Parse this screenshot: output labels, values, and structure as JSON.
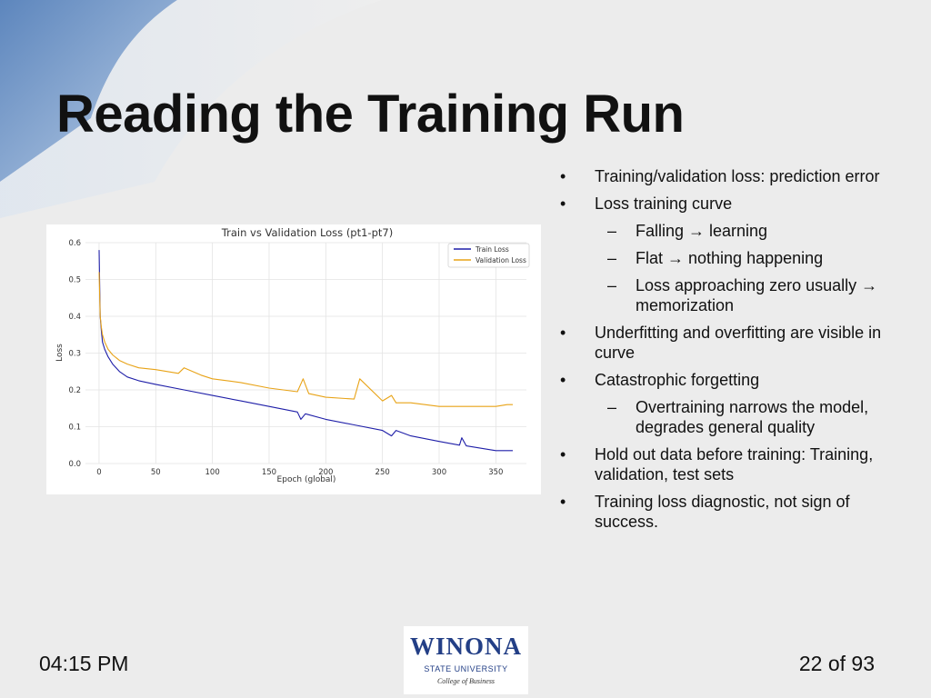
{
  "slide": {
    "title": "Reading the Training Run",
    "time": "04:15 PM",
    "page": "22 of 93"
  },
  "logo": {
    "word": "WINONA",
    "sub": "STATE UNIVERSITY",
    "college": "College of Business"
  },
  "bullets": [
    {
      "level": 1,
      "marker": "•",
      "text": "Training/validation loss: prediction error"
    },
    {
      "level": 1,
      "marker": "•",
      "text": "Loss training curve"
    },
    {
      "level": 2,
      "marker": "–",
      "text": "Falling → learning"
    },
    {
      "level": 2,
      "marker": "–",
      "text": "Flat → nothing happening"
    },
    {
      "level": 2,
      "marker": "–",
      "text": "Loss approaching zero usually → memorization"
    },
    {
      "level": 1,
      "marker": "•",
      "text": "Underfitting and overfitting are visible in curve"
    },
    {
      "level": 1,
      "marker": "•",
      "text": "Catastrophic forgetting"
    },
    {
      "level": 2,
      "marker": "–",
      "text": "Overtraining narrows the model, degrades general quality"
    },
    {
      "level": 1,
      "marker": "•",
      "text": "Hold out data before training: Training, validation, test sets"
    },
    {
      "level": 1,
      "marker": "•",
      "text": "Training loss diagnostic, not sign of success."
    }
  ],
  "chart_data": {
    "type": "line",
    "title": "Train vs Validation Loss (pt1-pt7)",
    "xlabel": "Epoch (global)",
    "ylabel": "Loss",
    "xlim": [
      -12,
      377
    ],
    "ylim": [
      0.0,
      0.6
    ],
    "xticks": [
      0,
      50,
      100,
      150,
      200,
      250,
      300,
      350
    ],
    "yticks": [
      0.0,
      0.1,
      0.2,
      0.3,
      0.4,
      0.5,
      0.6
    ],
    "grid": true,
    "legend_position": "top-right",
    "series": [
      {
        "name": "Train Loss",
        "color": "#1f1fa8",
        "x": [
          0,
          1,
          2,
          3,
          5,
          8,
          12,
          18,
          25,
          35,
          50,
          75,
          100,
          125,
          150,
          175,
          178,
          182,
          200,
          225,
          250,
          258,
          262,
          275,
          300,
          318,
          320,
          324,
          340,
          350,
          360,
          365
        ],
        "y": [
          0.58,
          0.4,
          0.36,
          0.33,
          0.31,
          0.29,
          0.27,
          0.25,
          0.235,
          0.225,
          0.215,
          0.2,
          0.185,
          0.17,
          0.155,
          0.14,
          0.12,
          0.135,
          0.12,
          0.105,
          0.09,
          0.075,
          0.09,
          0.075,
          0.06,
          0.05,
          0.07,
          0.048,
          0.04,
          0.035,
          0.035,
          0.035
        ]
      },
      {
        "name": "Validation Loss",
        "color": "#e8a317",
        "x": [
          0,
          1,
          2,
          3,
          5,
          8,
          12,
          18,
          25,
          35,
          50,
          70,
          75,
          90,
          100,
          125,
          150,
          175,
          180,
          185,
          200,
          225,
          230,
          250,
          258,
          262,
          275,
          300,
          325,
          350,
          360,
          365
        ],
        "y": [
          0.52,
          0.4,
          0.37,
          0.35,
          0.33,
          0.31,
          0.295,
          0.28,
          0.27,
          0.26,
          0.255,
          0.245,
          0.26,
          0.24,
          0.23,
          0.22,
          0.205,
          0.195,
          0.23,
          0.19,
          0.18,
          0.175,
          0.23,
          0.17,
          0.185,
          0.165,
          0.165,
          0.155,
          0.155,
          0.155,
          0.16,
          0.16
        ]
      }
    ]
  }
}
